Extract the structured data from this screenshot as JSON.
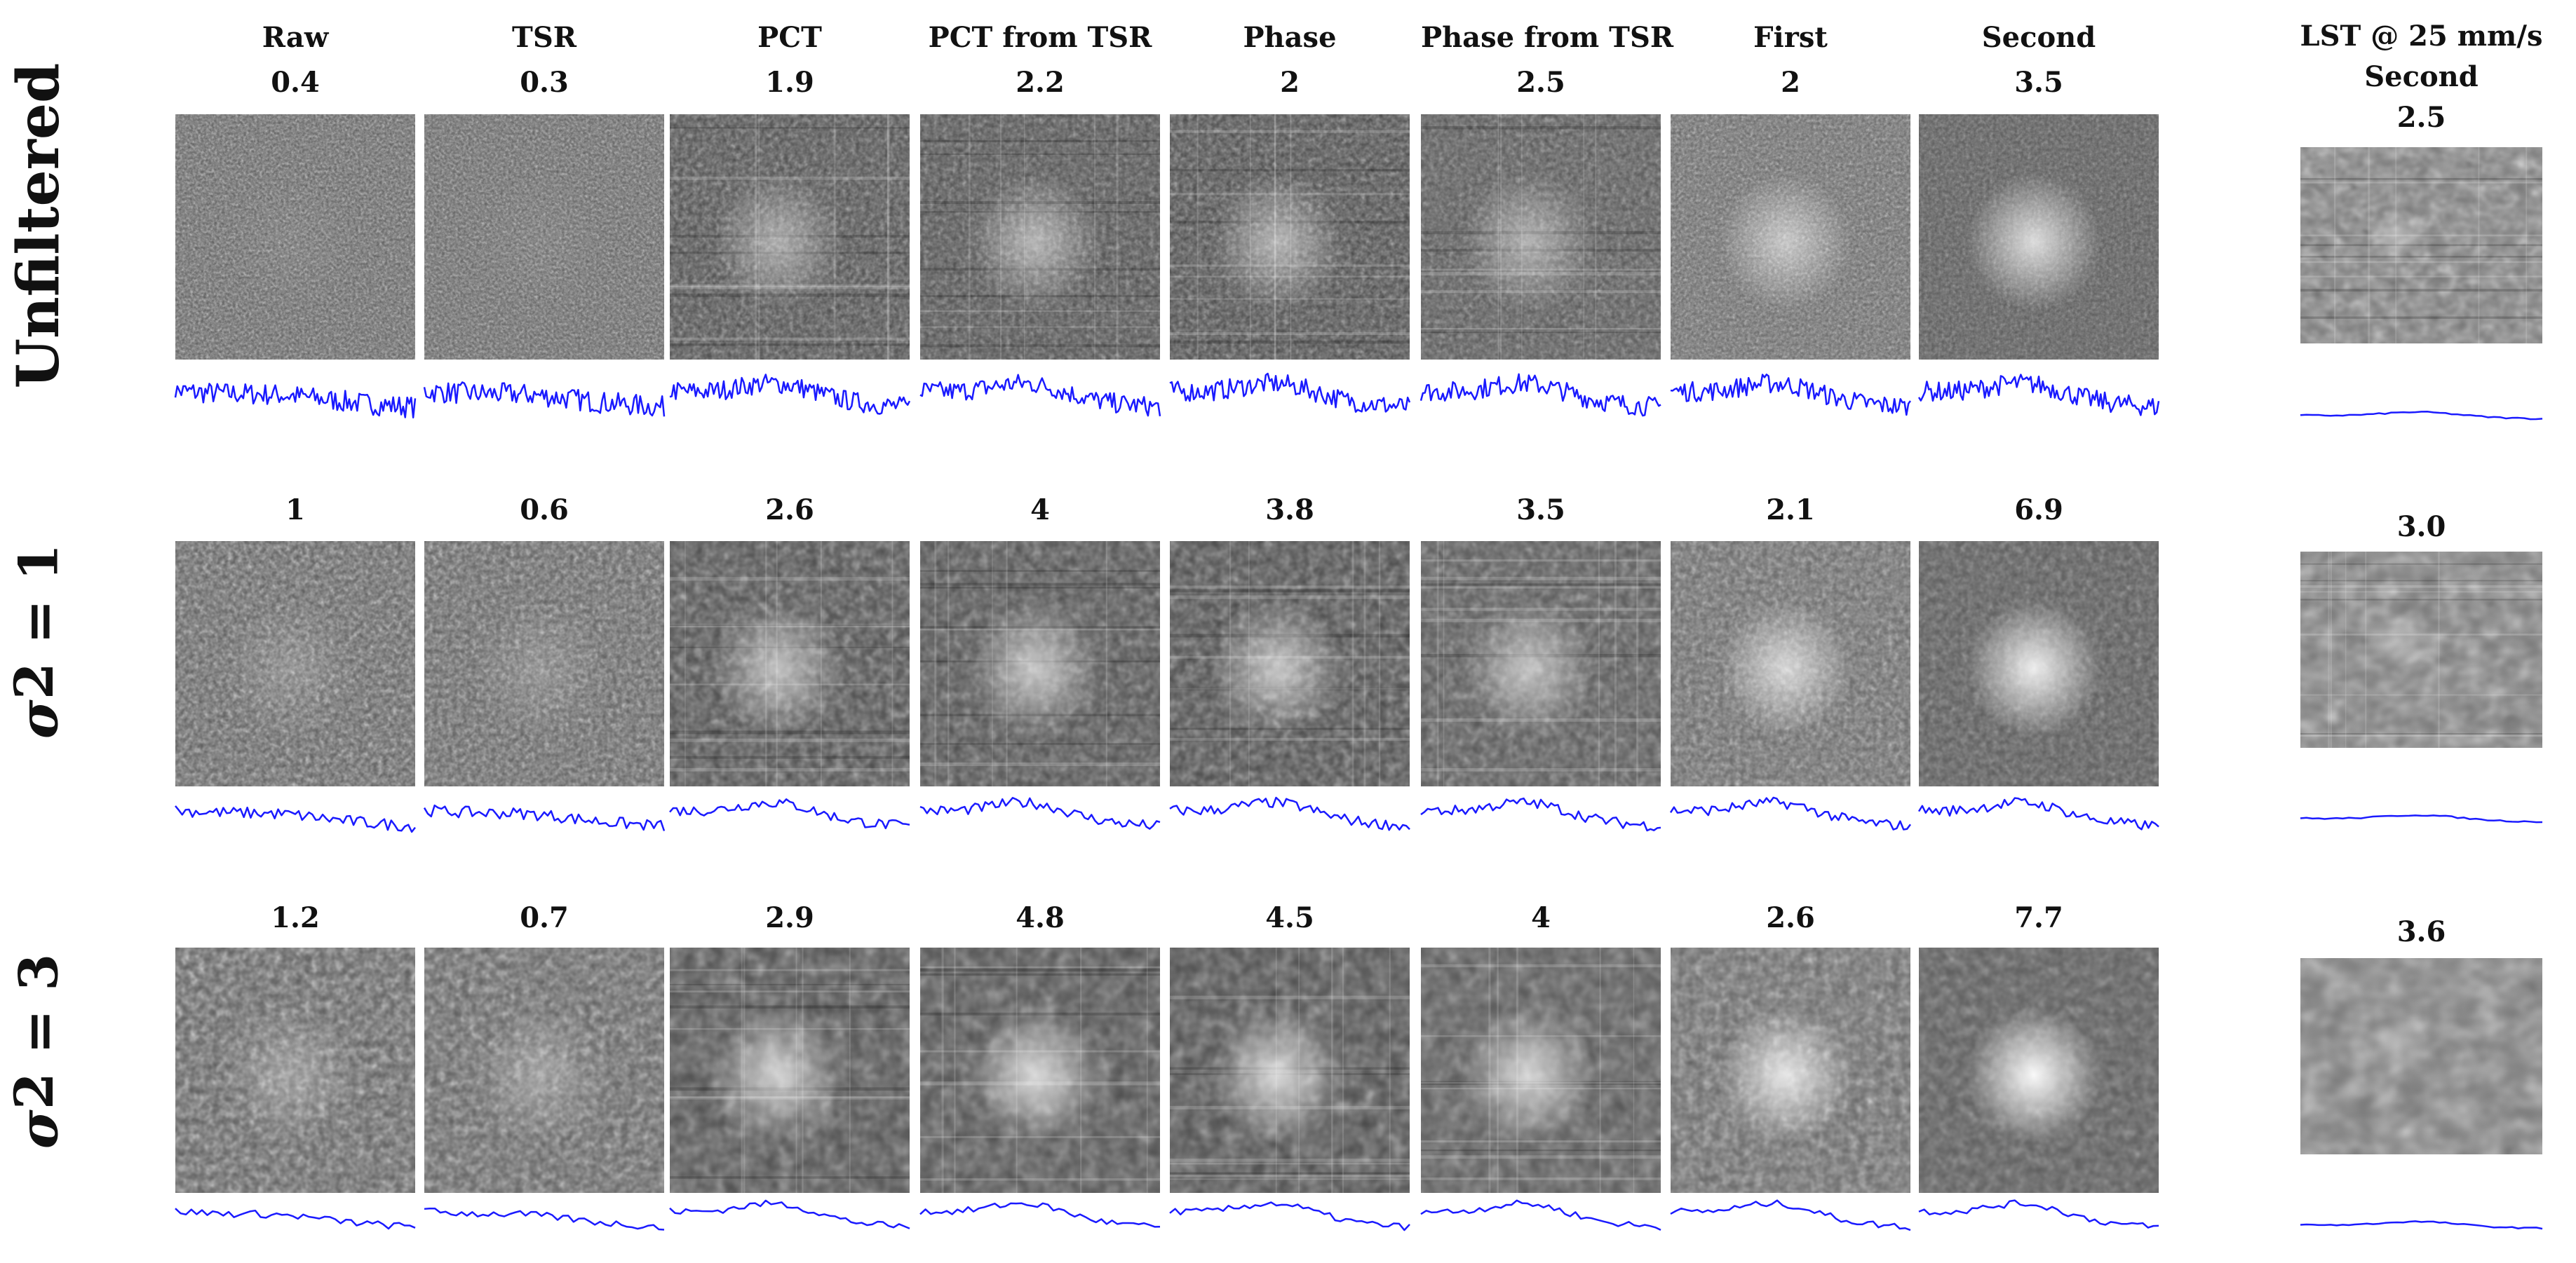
{
  "columns": [
    {
      "key": "raw",
      "label": "Raw"
    },
    {
      "key": "tsr",
      "label": "TSR"
    },
    {
      "key": "pct",
      "label": "PCT"
    },
    {
      "key": "pct_tsr",
      "label": "PCT from TSR"
    },
    {
      "key": "phase",
      "label": "Phase"
    },
    {
      "key": "phase_tsr",
      "label": "Phase from TSR"
    },
    {
      "key": "first",
      "label": "First"
    },
    {
      "key": "second",
      "label": "Second"
    }
  ],
  "lst_header": {
    "line1": "LST @ 25 mm/s",
    "line2": "Second"
  },
  "rows": [
    {
      "key": "unfiltered",
      "label": "Unfiltered",
      "sigma_symbol": "",
      "sigma_power": "",
      "sigma_value": "",
      "scores": [
        "0.4",
        "0.3",
        "1.9",
        "2.2",
        "2",
        "2.5",
        "2",
        "3.5"
      ],
      "lst_score": "2.5"
    },
    {
      "key": "sigma1",
      "label": "",
      "sigma_symbol": "σ",
      "sigma_power": "2",
      "sigma_value": " = 1",
      "scores": [
        "1",
        "0.6",
        "2.6",
        "4",
        "3.8",
        "3.5",
        "2.1",
        "6.9"
      ],
      "lst_score": "3.0"
    },
    {
      "key": "sigma3",
      "label": "",
      "sigma_symbol": "σ",
      "sigma_power": "2",
      "sigma_value": " = 3",
      "scores": [
        "1.2",
        "0.7",
        "2.9",
        "4.8",
        "4.5",
        "4",
        "2.6",
        "7.7"
      ],
      "lst_score": "3.6"
    }
  ],
  "colors": {
    "profile_line": "#1a1aff",
    "background": "#ffffff",
    "text": "#111111"
  }
}
